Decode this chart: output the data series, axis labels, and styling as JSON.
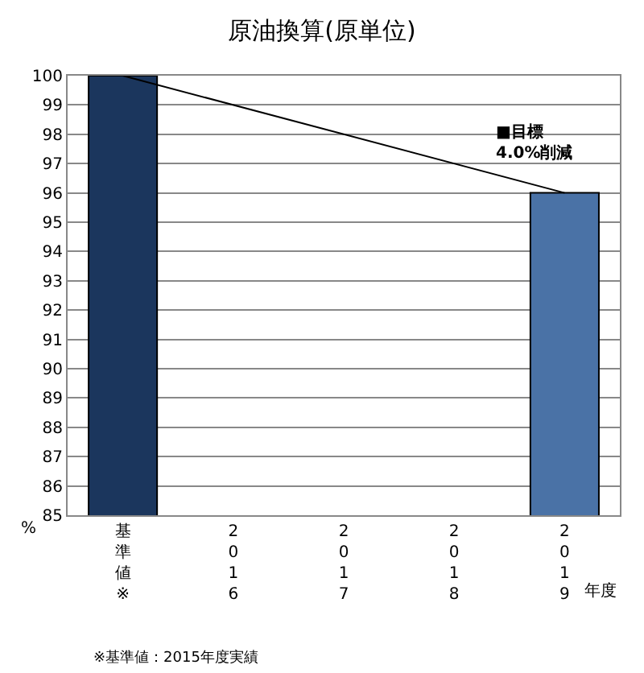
{
  "chart_data": {
    "type": "bar",
    "title": "原油換算(原単位)",
    "xlabel": "年度",
    "ylabel": "%",
    "categories": [
      "基準値※",
      "2016",
      "2017",
      "2018",
      "2019"
    ],
    "series": [
      {
        "colors": [
          "#1b365d",
          null,
          null,
          null,
          "#4a72a6"
        ],
        "values": [
          100,
          null,
          null,
          null,
          96
        ]
      },
      {
        "type": "line",
        "color": "#000000",
        "values": [
          100,
          null,
          null,
          null,
          96
        ]
      }
    ],
    "ylim": [
      85,
      100
    ],
    "yticks": [
      85,
      86,
      87,
      88,
      89,
      90,
      91,
      92,
      93,
      94,
      95,
      96,
      97,
      98,
      99,
      100
    ],
    "grid": "y",
    "legend": false,
    "marker": "none",
    "annotations": [
      "■目標\n4.0%削減",
      "※基準値：2015年度実績"
    ]
  }
}
